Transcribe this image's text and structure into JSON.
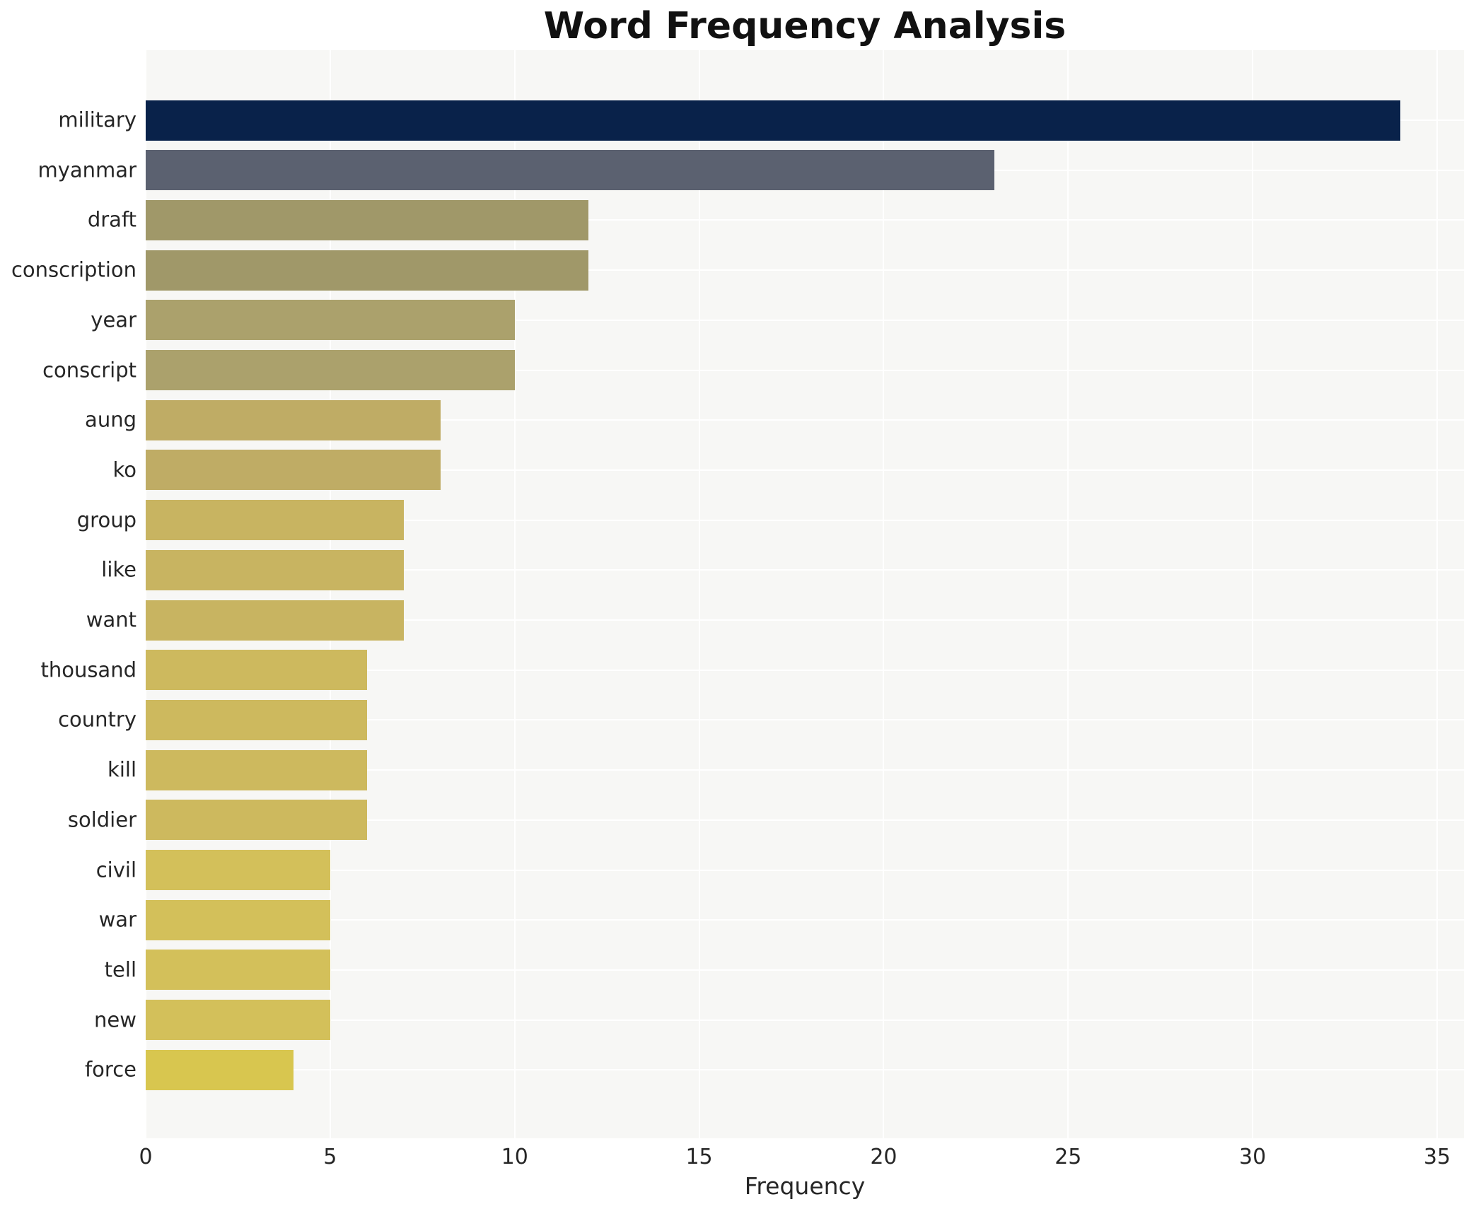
{
  "chart_data": {
    "type": "bar",
    "orientation": "horizontal",
    "title": "Word Frequency Analysis",
    "xlabel": "Frequency",
    "ylabel": "",
    "categories": [
      "military",
      "myanmar",
      "draft",
      "conscription",
      "year",
      "conscript",
      "aung",
      "ko",
      "group",
      "like",
      "want",
      "thousand",
      "country",
      "kill",
      "soldier",
      "civil",
      "war",
      "tell",
      "new",
      "force"
    ],
    "values": [
      34,
      23,
      12,
      12,
      10,
      10,
      8,
      8,
      7,
      7,
      7,
      6,
      6,
      6,
      6,
      5,
      5,
      5,
      5,
      4
    ],
    "bar_colors": [
      "#09224a",
      "#5b6170",
      "#a09869",
      "#a09869",
      "#aba16c",
      "#aba16c",
      "#bfac65",
      "#bfac65",
      "#c8b461",
      "#c8b461",
      "#c8b461",
      "#cdb95e",
      "#cdb95e",
      "#cdb95e",
      "#cdb95e",
      "#d3c05a",
      "#d3c05a",
      "#d3c05a",
      "#d3c05a",
      "#d8c64f"
    ],
    "xlim": [
      0,
      35
    ],
    "xticks": [
      0,
      5,
      10,
      15,
      20,
      25,
      30,
      35
    ],
    "grid": true,
    "legend": false,
    "plot_background": "#f7f7f5",
    "grid_color": "#ffffff",
    "figure_background": "#ffffff",
    "text_color": "#262626"
  }
}
